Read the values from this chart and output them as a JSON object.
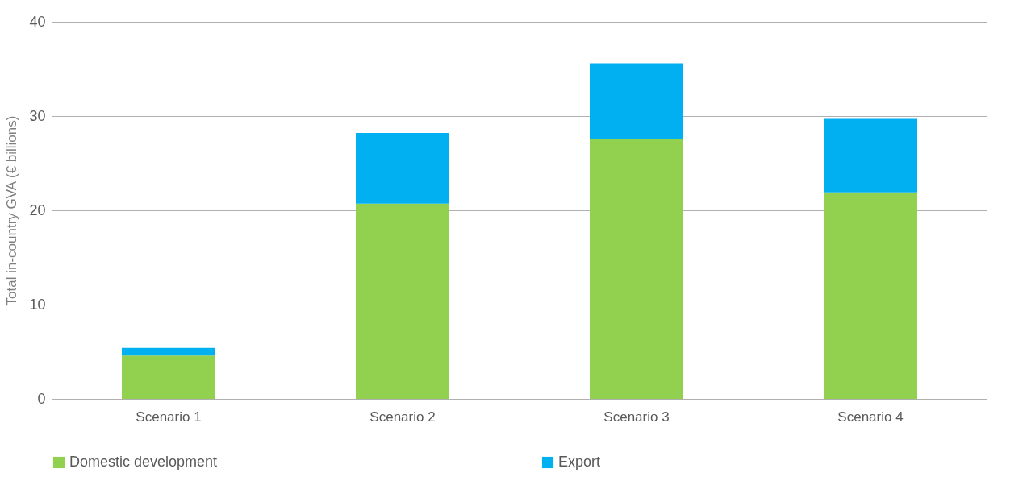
{
  "chart_data": {
    "type": "bar",
    "stacked": true,
    "ylabel": "Total in-country GVA (€ billions)",
    "categories": [
      "Scenario 1",
      "Scenario 2",
      "Scenario 3",
      "Scenario 4"
    ],
    "series": [
      {
        "name": "Domestic development",
        "color": "#92d050",
        "values": [
          4.6,
          20.7,
          27.6,
          21.9
        ]
      },
      {
        "name": "Export",
        "color": "#00b0f0",
        "values": [
          0.8,
          7.5,
          8.0,
          7.8
        ]
      }
    ],
    "ylim": [
      0,
      40
    ],
    "yticks": [
      0,
      10,
      20,
      30,
      40
    ],
    "grid": "y",
    "legend": "bottom"
  }
}
